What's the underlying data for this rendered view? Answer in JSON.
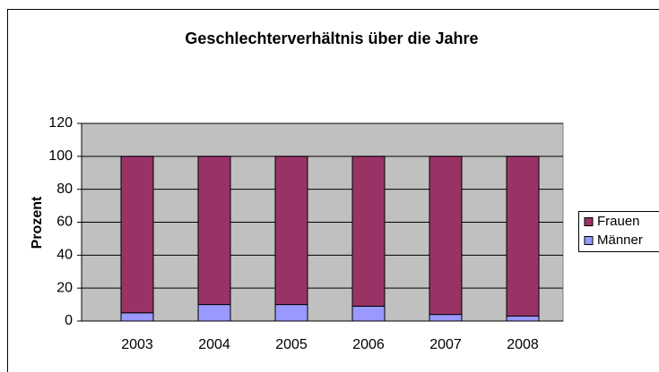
{
  "chart_data": {
    "type": "bar",
    "stacked": true,
    "title": "Geschlechterverhältnis über die Jahre",
    "y_label": "Prozent",
    "categories": [
      "2003",
      "2004",
      "2005",
      "2006",
      "2007",
      "2008"
    ],
    "series": [
      {
        "name": "Frauen",
        "color": "#993366",
        "values": [
          95,
          90,
          90,
          91,
          96,
          97
        ]
      },
      {
        "name": "Männer",
        "color": "#9999ff",
        "values": [
          5,
          10,
          10,
          9,
          4,
          3
        ]
      }
    ],
    "ylim": [
      0,
      120
    ],
    "yticks": [
      0,
      20,
      40,
      60,
      80,
      100,
      120
    ],
    "grid": true,
    "legend": "right"
  }
}
